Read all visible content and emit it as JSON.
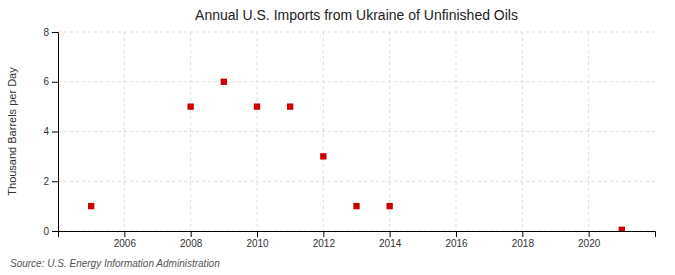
{
  "chart_data": {
    "type": "scatter",
    "title": "Annual U.S. Imports from Ukraine of Unfinished Oils",
    "ylabel": "Thousand Barrels per Day",
    "source": "Source: U.S. Energy Information Administration",
    "color": "#cc0000",
    "marker": "square",
    "grid": true,
    "xlim": [
      2004.0,
      2022.0
    ],
    "ylim": [
      0,
      8
    ],
    "xticks": [
      2006,
      2008,
      2010,
      2012,
      2014,
      2016,
      2018,
      2020
    ],
    "yticks": [
      0,
      2,
      4,
      6,
      8
    ],
    "x": [
      2005,
      2008,
      2009,
      2010,
      2011,
      2012,
      2013,
      2014,
      2021
    ],
    "values": [
      1,
      5,
      6,
      5,
      5,
      3,
      1,
      1,
      0.05
    ]
  }
}
